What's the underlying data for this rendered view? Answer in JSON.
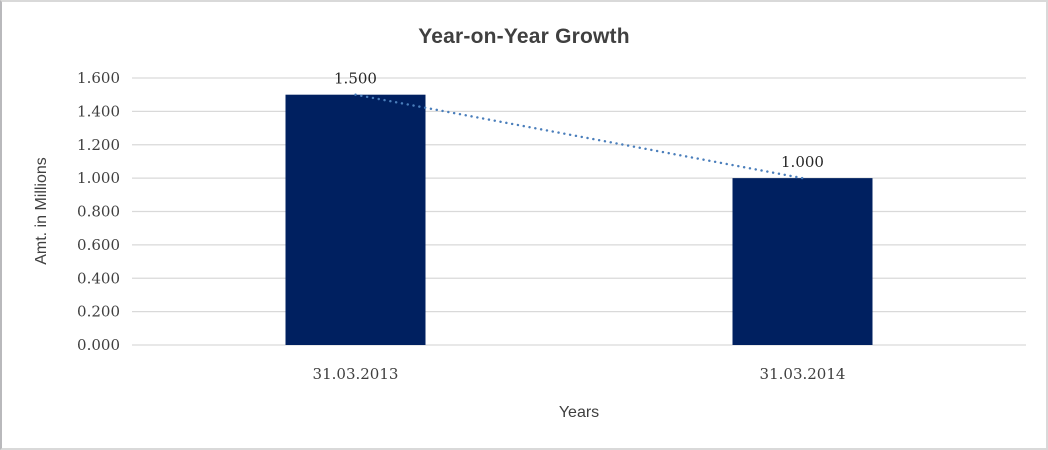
{
  "chart_data": {
    "type": "bar",
    "title": "Year-on-Year Growth",
    "categories": [
      "31.03.2013",
      "31.03.2014"
    ],
    "values": [
      1.5,
      1.0
    ],
    "data_labels": [
      "1.500",
      "1.000"
    ],
    "xlabel": "Years",
    "ylabel": "Amt. in Millions",
    "ylim": [
      0,
      1.6
    ],
    "ytick_labels": [
      "0.000",
      "0.200",
      "0.400",
      "0.600",
      "0.800",
      "1.000",
      "1.200",
      "1.400",
      "1.600"
    ],
    "grid": "horizontal",
    "legend": "none",
    "colors": {
      "bar": "#002060",
      "gridline": "#d9d9d9",
      "trendline": "#4a7ebb",
      "title": "#404040",
      "tick_text": "#3f3f3f"
    },
    "trendline": {
      "type": "linear",
      "style": "dotted",
      "color": "#4a7ebb",
      "points": [
        [
          0,
          1.5
        ],
        [
          1,
          1.0
        ]
      ]
    }
  }
}
